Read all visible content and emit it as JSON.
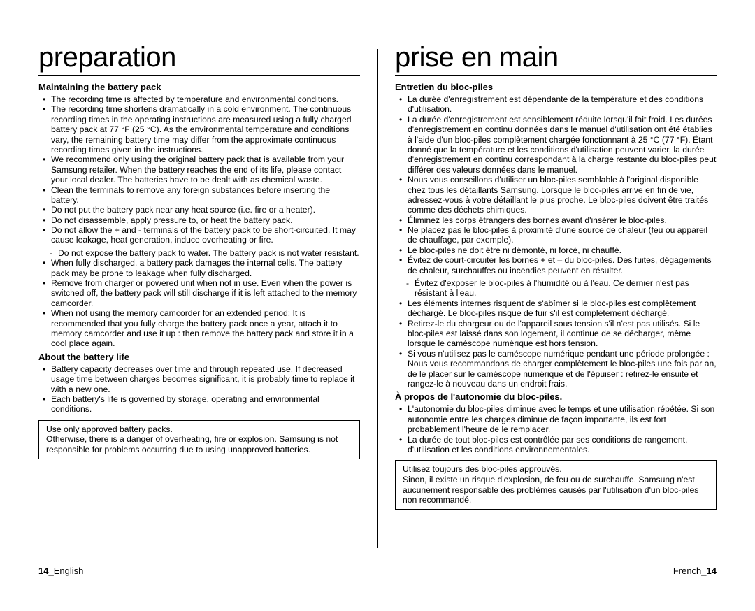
{
  "left": {
    "title": "preparation",
    "sec1_head": "Maintaining the battery pack",
    "sec1": [
      "The recording time is affected by temperature and environmental conditions.",
      "The recording time shortens dramatically in a cold environment. The continuous recording times in the operating instructions are measured using a fully charged battery pack at 77 °F (25 °C). As the environmental temperature and conditions vary, the remaining battery time may differ from the approximate continuous recording times given in the instructions.",
      "We recommend only using the original battery pack that is available from your Samsung retailer. When the battery reaches the end of its life, please contact your local dealer. The batteries have to be dealt with as chemical waste.",
      "Clean the terminals to remove any foreign substances before inserting the battery.",
      "Do not put the battery pack near any heat source (i.e. fire or a heater).",
      "Do not disassemble, apply pressure to, or heat the battery pack.",
      "Do not allow the + and - terminals of the battery pack to be short-circuited. It may cause leakage, heat generation, induce overheating or fire."
    ],
    "sec1_sub": [
      "Do not expose the battery pack to water. The battery pack is not water resistant."
    ],
    "sec1b": [
      "When fully discharged, a battery pack damages the internal cells. The battery pack may be prone to leakage when fully discharged.",
      "Remove from charger or powered unit when not in use. Even when the power is switched off, the battery pack will still discharge if it is left attached to the memory camcorder.",
      "When not using the memory camcorder for an extended period: It is recommended that you fully charge the battery pack once a year, attach it to memory camcorder and use it up : then remove the battery pack and store it in a cool place again."
    ],
    "sec2_head": "About the battery life",
    "sec2": [
      "Battery capacity decreases over time and through repeated use. If decreased usage time between charges becomes significant, it is probably time to replace it with a new one.",
      "Each battery's life is governed by storage, operating and environmental conditions."
    ],
    "box": "Use only approved battery packs.\nOtherwise, there is a danger of overheating, fire or explosion. Samsung is not responsible for problems occurring due to using unapproved batteries.",
    "footer_pg": "14",
    "footer_lang": "English"
  },
  "right": {
    "title": "prise en main",
    "sec1_head": "Entretien du bloc-piles",
    "sec1": [
      "La durée d'enregistrement est dépendante de la température et des conditions d'utilisation.",
      "La durée d'enregistrement est sensiblement réduite lorsqu'il fait froid. Les durées d'enregistrement en continu données dans le manuel d'utilisation ont été établies à l'aide d'un bloc-piles complètement chargée fonctionnant à 25 °C (77 °F). Étant donné que la température et les conditions d'utilisation peuvent varier, la durée d'enregistrement en continu correspondant à la charge restante du bloc-piles peut différer des valeurs données dans le manuel.",
      "Nous vous conseillons d'utiliser un bloc-piles semblable à l'original disponible chez tous les détaillants Samsung. Lorsque le bloc-piles arrive en fin de vie, adressez-vous à votre détaillant le plus proche. Le bloc-piles doivent être traités comme des déchets chimiques.",
      "Éliminez les corps étrangers des bornes avant d'insérer le bloc-piles.",
      "Ne placez pas le bloc-piles à proximité d'une source de chaleur (feu ou appareil de chauffage, par exemple).",
      "Le bloc-piles ne doit être ni démonté, ni forcé, ni chauffé.",
      "Évitez de court-circuiter les bornes + et – du bloc-piles. Des fuites, dégagements de chaleur, surchauffes ou incendies peuvent en résulter."
    ],
    "sec1_sub": [
      "Évitez d'exposer le bloc-piles à l'humidité ou à l'eau. Ce dernier n'est pas résistant à l'eau."
    ],
    "sec1b": [
      "Les éléments internes risquent de s'abîmer si le bloc-piles est complètement déchargé. Le bloc-piles risque de fuir s'il est complètement déchargé.",
      "Retirez-le du chargeur ou de l'appareil sous tension s'il n'est pas utilisés. Si le bloc-piles est laissé dans son logement, il continue de se décharger, même lorsque le caméscope numérique est hors tension.",
      "Si vous n'utilisez pas le caméscope numérique pendant une période prolongée : Nous vous recommandons de charger complètement le bloc-piles une fois par an, de le placer sur le caméscope numérique et de l'épuiser : retirez-le ensuite et rangez-le à nouveau dans un endroit frais."
    ],
    "sec2_head": "À propos de l'autonomie du bloc-piles.",
    "sec2": [
      "L'autonomie du bloc-piles diminue avec le temps et une utilisation répétée. Si son autonomie entre les charges diminue de façon importante, ils est fort probablement l'heure de le remplacer.",
      "La durée de tout bloc-piles est contrôlée par ses conditions de rangement, d'utilisation et les conditions environnementales."
    ],
    "box": "Utilisez toujours des bloc-piles approuvés.\nSinon, il existe un risque d'explosion, de feu ou de surchauffe. Samsung n'est aucunement responsable des problèmes causés par l'utilisation d'un bloc-piles non recommandé.",
    "footer_lang": "French",
    "footer_pg": "14"
  }
}
